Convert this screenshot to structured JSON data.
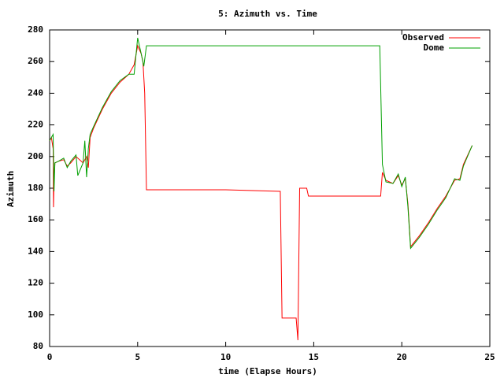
{
  "chart_data": {
    "type": "line",
    "title": "5: Azimuth vs. Time",
    "x_label": "time (Elapse Hours)",
    "y_label": "Azimuth",
    "xlim": [
      0,
      25
    ],
    "ylim": [
      80,
      280
    ],
    "xticks": [
      0,
      5,
      10,
      15,
      20,
      25
    ],
    "yticks": [
      80,
      100,
      120,
      140,
      160,
      180,
      200,
      220,
      240,
      260,
      280
    ],
    "legend": "top-right",
    "series": [
      {
        "name": "Observed",
        "color": "#ff0000",
        "x": [
          0,
          0.1,
          0.2,
          0.22,
          0.25,
          0.3,
          0.5,
          0.8,
          1.0,
          1.2,
          1.5,
          1.9,
          2.1,
          2.2,
          2.3,
          2.5,
          3.0,
          3.5,
          4.0,
          4.5,
          4.8,
          5.0,
          5.2,
          5.3,
          5.4,
          5.5,
          10,
          13.1,
          13.2,
          14.0,
          14.1,
          14.2,
          14.6,
          14.7,
          18.8,
          18.9,
          19.1,
          19.5,
          19.8,
          20.0,
          20.2,
          20.35,
          20.5,
          21,
          21.5,
          22,
          22.5,
          23,
          23.3,
          23.5,
          24
        ],
        "values": [
          210,
          212,
          205,
          168,
          185,
          196,
          197,
          198,
          194,
          196,
          200,
          196,
          200,
          193,
          212,
          218,
          230,
          240,
          247,
          252,
          258,
          270,
          265,
          260,
          240,
          179,
          179,
          178,
          98,
          98,
          84,
          180,
          180,
          175,
          175,
          190,
          185,
          183,
          188,
          182,
          186,
          170,
          143,
          150,
          158,
          167,
          175,
          185,
          186,
          195,
          207
        ]
      },
      {
        "name": "Dome",
        "color": "#00a000",
        "x": [
          0,
          0.2,
          0.25,
          0.3,
          0.5,
          0.8,
          1.0,
          1.2,
          1.5,
          1.6,
          1.9,
          2.0,
          2.1,
          2.2,
          2.3,
          2.5,
          3.0,
          3.5,
          4.0,
          4.5,
          4.8,
          5.0,
          5.2,
          5.35,
          5.5,
          18.75,
          18.9,
          19.1,
          19.5,
          19.8,
          20.0,
          20.2,
          20.35,
          20.5,
          21,
          21.5,
          22,
          22.5,
          23,
          23.3,
          23.5,
          24
        ],
        "values": [
          210,
          214,
          178,
          196,
          197,
          199,
          193,
          197,
          201,
          188,
          196,
          210,
          187,
          205,
          214,
          219,
          231,
          241,
          248,
          252,
          252,
          275,
          265,
          257,
          270,
          270,
          195,
          184,
          183,
          189,
          181,
          187,
          168,
          142,
          149,
          157,
          166,
          174,
          186,
          185,
          194,
          207
        ]
      }
    ]
  }
}
